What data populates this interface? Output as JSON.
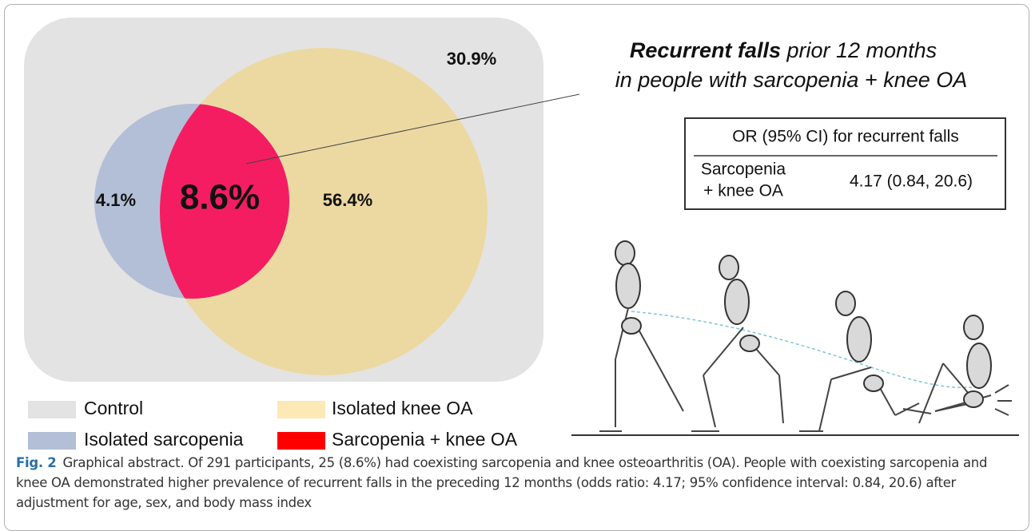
{
  "venn": {
    "control": "30.9%",
    "isolated_sarcopenia": "4.1%",
    "sarcopenia_knee_oa": "8.6%",
    "isolated_knee_oa": "56.4%"
  },
  "legend": [
    "Control",
    "Isolated knee OA",
    "Isolated sarcopenia",
    "Sarcopenia + knee OA"
  ],
  "callout": {
    "line1": "Recurrent falls",
    "line1_rest": "prior 12 months",
    "line2": "in people with sarcopenia + knee OA"
  },
  "table": {
    "header": "OR (95% CI) for recurrent falls",
    "row_label_1": "Sarcopenia",
    "row_label_2": "+ knee OA",
    "value": "4.17 (0.84, 20.6)"
  },
  "caption": {
    "label": "Fig. 2",
    "text": "Graphical abstract. Of 291 participants, 25 (8.6%) had coexisting sarcopenia and knee osteoarthritis (OA). People with coexisting sarcopenia and knee OA demonstrated higher prevalence of recurrent falls in the preceding 12 months (odds ratio: 4.17; 95% confidence interval: 0.84, 20.6) after adjustment for age, sex, and body mass index"
  }
}
